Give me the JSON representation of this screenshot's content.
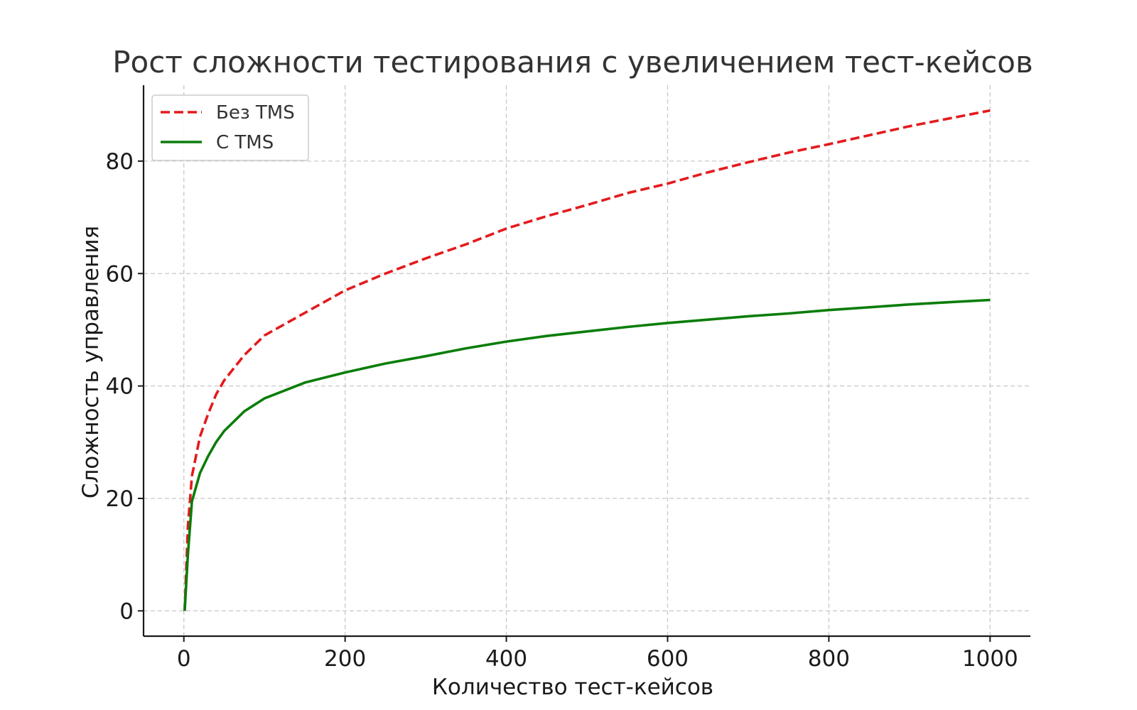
{
  "chart_data": {
    "type": "line",
    "title": "Рост сложности тестирования с увеличением тест-кейсов",
    "xlabel": "Количество тест-кейсов",
    "ylabel": "Сложность управления",
    "xlim": [
      -50,
      1050
    ],
    "ylim": [
      -4.5,
      93.5
    ],
    "xticks": [
      0,
      200,
      400,
      600,
      800,
      1000
    ],
    "yticks": [
      0,
      20,
      40,
      60,
      80
    ],
    "grid": true,
    "legend_position": "top-left",
    "series": [
      {
        "name": "Без TMS",
        "color": "#e41a1c",
        "style": "dashed",
        "points": [
          [
            1,
            0
          ],
          [
            5,
            15
          ],
          [
            10,
            24
          ],
          [
            20,
            31
          ],
          [
            30,
            35
          ],
          [
            40,
            38.5
          ],
          [
            50,
            41
          ],
          [
            75,
            45.5
          ],
          [
            100,
            49
          ],
          [
            150,
            53
          ],
          [
            200,
            57
          ],
          [
            250,
            60
          ],
          [
            300,
            62.7
          ],
          [
            350,
            65.2
          ],
          [
            400,
            68
          ],
          [
            450,
            70.2
          ],
          [
            500,
            72.2
          ],
          [
            550,
            74.3
          ],
          [
            600,
            76
          ],
          [
            650,
            78
          ],
          [
            700,
            79.8
          ],
          [
            750,
            81.5
          ],
          [
            800,
            83
          ],
          [
            850,
            84.6
          ],
          [
            900,
            86.2
          ],
          [
            950,
            87.6
          ],
          [
            1000,
            89
          ]
        ]
      },
      {
        "name": "С TMS",
        "color": "#0a7d0a",
        "style": "solid",
        "points": [
          [
            1,
            0
          ],
          [
            5,
            10
          ],
          [
            10,
            19.5
          ],
          [
            20,
            24.5
          ],
          [
            30,
            27.5
          ],
          [
            40,
            30
          ],
          [
            50,
            32
          ],
          [
            75,
            35.5
          ],
          [
            100,
            37.8
          ],
          [
            150,
            40.6
          ],
          [
            200,
            42.4
          ],
          [
            250,
            44
          ],
          [
            300,
            45.3
          ],
          [
            350,
            46.7
          ],
          [
            400,
            47.9
          ],
          [
            450,
            48.9
          ],
          [
            500,
            49.7
          ],
          [
            550,
            50.5
          ],
          [
            600,
            51.2
          ],
          [
            650,
            51.8
          ],
          [
            700,
            52.4
          ],
          [
            750,
            52.9
          ],
          [
            800,
            53.5
          ],
          [
            850,
            54
          ],
          [
            900,
            54.5
          ],
          [
            950,
            54.9
          ],
          [
            1000,
            55.3
          ]
        ]
      }
    ]
  }
}
